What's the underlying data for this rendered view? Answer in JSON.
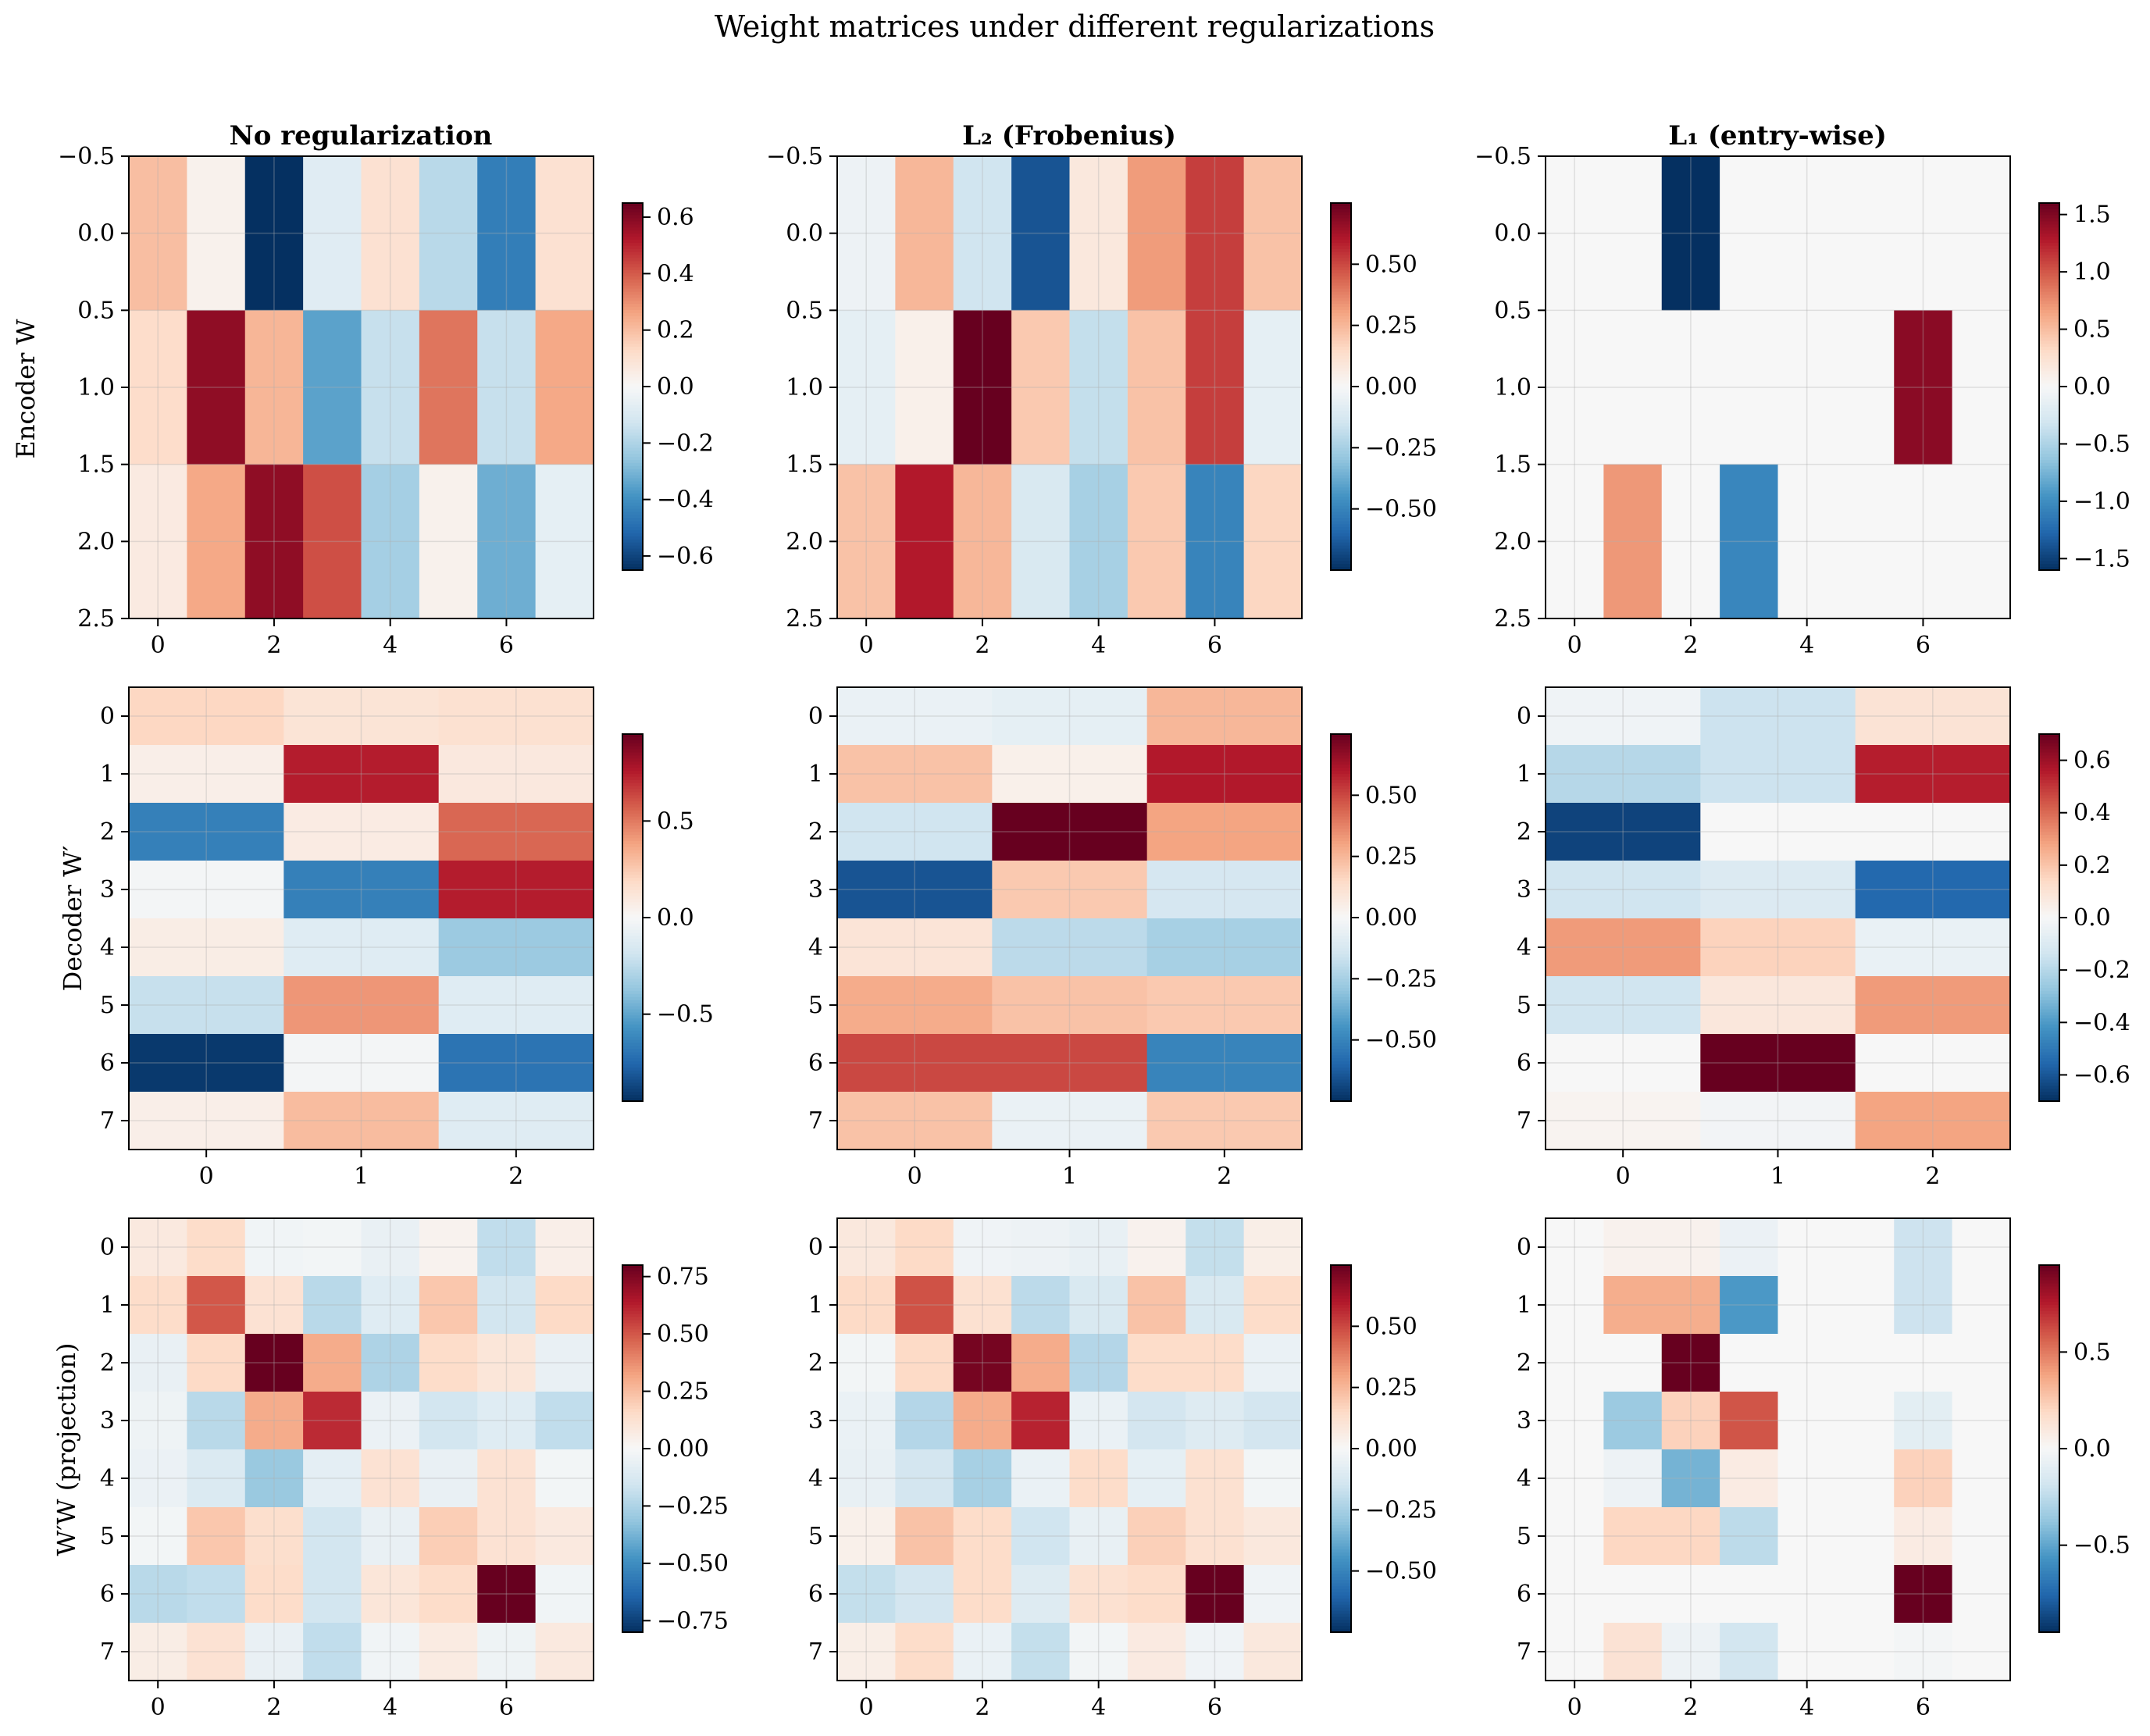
{
  "title": "Weight matrices under different regularizations",
  "columns": [
    "No regularization",
    "L₂ (Frobenius)",
    "L₁ (entry-wise)"
  ],
  "rows": [
    "Encoder W",
    "Decoder W′",
    "W′W (projection)"
  ],
  "colormap": {
    "name": "RdBu_r",
    "stops": [
      "#053061",
      "#2166ac",
      "#4393c3",
      "#92c5de",
      "#d1e5f0",
      "#f7f7f7",
      "#fddbc7",
      "#f4a582",
      "#d6604d",
      "#b2182b",
      "#67001f"
    ]
  },
  "chart_data": [
    {
      "type": "heatmap",
      "panel": "encoder-none",
      "title": "No regularization",
      "ylabel": "Encoder W",
      "xticks": [
        "0",
        "2",
        "4",
        "6"
      ],
      "yticks": [
        "−0.5",
        "0.0",
        "0.5",
        "1.0",
        "1.5",
        "2.0",
        "2.5"
      ],
      "colorbar_ticks": [
        "−0.6",
        "−0.4",
        "−0.2",
        "0.0",
        "0.2",
        "0.4",
        "0.6"
      ],
      "vmin": -0.65,
      "vmax": 0.65,
      "values": [
        [
          0.2,
          0.03,
          -0.65,
          -0.08,
          0.1,
          -0.18,
          -0.45,
          0.1
        ],
        [
          0.12,
          0.58,
          0.22,
          -0.35,
          -0.15,
          0.35,
          -0.15,
          0.25
        ],
        [
          0.06,
          0.25,
          0.58,
          0.42,
          -0.22,
          0.03,
          -0.32,
          -0.06
        ]
      ]
    },
    {
      "type": "heatmap",
      "panel": "encoder-l2",
      "title": "L₂ (Frobenius)",
      "xticks": [
        "0",
        "2",
        "4",
        "6"
      ],
      "yticks": [
        "−0.5",
        "0.0",
        "0.5",
        "1.0",
        "1.5",
        "2.0",
        "2.5"
      ],
      "colorbar_ticks": [
        "−0.50",
        "−0.25",
        "0.00",
        "0.25",
        "0.50"
      ],
      "vmin": -0.75,
      "vmax": 0.75,
      "values": [
        [
          -0.04,
          0.25,
          -0.15,
          -0.65,
          0.08,
          0.32,
          0.52,
          0.22
        ],
        [
          -0.07,
          0.04,
          0.75,
          0.2,
          -0.18,
          0.22,
          0.52,
          -0.07
        ],
        [
          0.22,
          0.6,
          0.25,
          -0.12,
          -0.25,
          0.2,
          -0.5,
          0.16
        ]
      ]
    },
    {
      "type": "heatmap",
      "panel": "encoder-l1",
      "title": "L₁ (entry-wise)",
      "xticks": [
        "0",
        "2",
        "4",
        "6"
      ],
      "yticks": [
        "−0.5",
        "0.0",
        "0.5",
        "1.0",
        "1.5",
        "2.0",
        "2.5"
      ],
      "colorbar_ticks": [
        "−1.5",
        "−1.0",
        "−0.5",
        "0.0",
        "0.5",
        "1.0",
        "1.5"
      ],
      "vmin": -1.6,
      "vmax": 1.6,
      "values": [
        [
          0,
          0,
          -1.6,
          0,
          0,
          0,
          0,
          0
        ],
        [
          0,
          0,
          0,
          0,
          0,
          0,
          1.45,
          0
        ],
        [
          0,
          0.7,
          0,
          -1.05,
          0,
          0,
          0,
          0
        ]
      ]
    },
    {
      "type": "heatmap",
      "panel": "decoder-none",
      "ylabel": "Decoder W′",
      "xticks": [
        "0",
        "1",
        "2"
      ],
      "yticks": [
        "0",
        "1",
        "2",
        "3",
        "4",
        "5",
        "6",
        "7"
      ],
      "colorbar_ticks": [
        "−0.5",
        "0.0",
        "0.5"
      ],
      "vmin": -0.95,
      "vmax": 0.95,
      "values": [
        [
          0.2,
          0.13,
          0.15
        ],
        [
          0.06,
          0.75,
          0.1
        ],
        [
          -0.65,
          0.08,
          0.55
        ],
        [
          -0.02,
          -0.65,
          0.75
        ],
        [
          0.07,
          -0.12,
          -0.35
        ],
        [
          -0.22,
          0.42,
          -0.12
        ],
        [
          -0.92,
          -0.02,
          -0.7
        ],
        [
          0.06,
          0.3,
          -0.12
        ]
      ]
    },
    {
      "type": "heatmap",
      "panel": "decoder-l2",
      "xticks": [
        "0",
        "1",
        "2"
      ],
      "yticks": [
        "0",
        "1",
        "2",
        "3",
        "4",
        "5",
        "6",
        "7"
      ],
      "colorbar_ticks": [
        "−0.50",
        "−0.25",
        "0.00",
        "0.25",
        "0.50"
      ],
      "vmin": -0.75,
      "vmax": 0.75,
      "values": [
        [
          -0.05,
          -0.07,
          0.25
        ],
        [
          0.22,
          0.04,
          0.6
        ],
        [
          -0.15,
          0.75,
          0.3
        ],
        [
          -0.65,
          0.2,
          -0.13
        ],
        [
          0.1,
          -0.2,
          -0.25
        ],
        [
          0.28,
          0.22,
          0.2
        ],
        [
          0.5,
          0.5,
          -0.5
        ],
        [
          0.22,
          -0.05,
          0.2
        ]
      ]
    },
    {
      "type": "heatmap",
      "panel": "decoder-l1",
      "xticks": [
        "0",
        "1",
        "2"
      ],
      "yticks": [
        "0",
        "1",
        "2",
        "3",
        "4",
        "5",
        "6",
        "7"
      ],
      "colorbar_ticks": [
        "−0.6",
        "−0.4",
        "−0.2",
        "0.0",
        "0.2",
        "0.4",
        "0.6"
      ],
      "vmin": -0.7,
      "vmax": 0.7,
      "values": [
        [
          -0.03,
          -0.15,
          0.1
        ],
        [
          -0.2,
          -0.15,
          0.55
        ],
        [
          -0.65,
          0,
          0
        ],
        [
          -0.14,
          -0.1,
          -0.55
        ],
        [
          0.3,
          0.16,
          -0.05
        ],
        [
          -0.14,
          0.08,
          0.3
        ],
        [
          0,
          0.7,
          0
        ],
        [
          0.02,
          -0.02,
          0.28
        ]
      ]
    },
    {
      "type": "heatmap",
      "panel": "projection-none",
      "ylabel": "W′W (projection)",
      "xticks": [
        "0",
        "2",
        "4",
        "6"
      ],
      "yticks": [
        "0",
        "1",
        "2",
        "3",
        "4",
        "5",
        "6",
        "7"
      ],
      "colorbar_ticks": [
        "−0.75",
        "−0.50",
        "−0.25",
        "0.00",
        "0.25",
        "0.50",
        "0.75"
      ],
      "vmin": -0.8,
      "vmax": 0.8,
      "values": [
        [
          0.08,
          0.15,
          -0.03,
          -0.02,
          -0.06,
          0.03,
          -0.2,
          0.05
        ],
        [
          0.15,
          0.5,
          0.12,
          -0.22,
          -0.1,
          0.22,
          -0.15,
          0.16
        ],
        [
          -0.06,
          0.16,
          0.8,
          0.3,
          -0.25,
          0.15,
          0.1,
          -0.06
        ],
        [
          -0.04,
          -0.22,
          0.3,
          0.6,
          -0.05,
          -0.15,
          -0.1,
          -0.2
        ],
        [
          -0.05,
          -0.12,
          -0.3,
          -0.08,
          0.12,
          -0.06,
          0.12,
          -0.02
        ],
        [
          -0.02,
          0.22,
          0.14,
          -0.15,
          -0.06,
          0.2,
          0.12,
          0.08
        ],
        [
          -0.22,
          -0.2,
          0.15,
          -0.15,
          0.1,
          0.15,
          0.8,
          -0.03
        ],
        [
          0.06,
          0.12,
          -0.06,
          -0.2,
          -0.03,
          0.07,
          -0.04,
          0.08
        ]
      ]
    },
    {
      "type": "heatmap",
      "panel": "projection-l2",
      "xticks": [
        "0",
        "2",
        "4",
        "6"
      ],
      "yticks": [
        "0",
        "1",
        "2",
        "3",
        "4",
        "5",
        "6",
        "7"
      ],
      "colorbar_ticks": [
        "−0.50",
        "−0.25",
        "0.00",
        "0.25",
        "0.50"
      ],
      "vmin": -0.75,
      "vmax": 0.75,
      "values": [
        [
          0.08,
          0.15,
          -0.03,
          -0.04,
          -0.06,
          0.03,
          -0.18,
          0.05
        ],
        [
          0.15,
          0.48,
          0.12,
          -0.2,
          -0.12,
          0.22,
          -0.12,
          0.14
        ],
        [
          -0.02,
          0.15,
          0.72,
          0.28,
          -0.22,
          0.14,
          0.14,
          -0.05
        ],
        [
          -0.05,
          -0.22,
          0.28,
          0.58,
          -0.05,
          -0.14,
          -0.1,
          -0.14
        ],
        [
          -0.06,
          -0.14,
          -0.25,
          -0.05,
          0.14,
          -0.07,
          0.12,
          -0.02
        ],
        [
          0.04,
          0.22,
          0.14,
          -0.15,
          -0.06,
          0.18,
          0.12,
          0.08
        ],
        [
          -0.18,
          -0.14,
          0.14,
          -0.1,
          0.12,
          0.14,
          0.75,
          -0.03
        ],
        [
          0.05,
          0.14,
          -0.05,
          -0.18,
          -0.02,
          0.07,
          -0.03,
          0.08
        ]
      ]
    },
    {
      "type": "heatmap",
      "panel": "projection-l1",
      "xticks": [
        "0",
        "2",
        "4",
        "6"
      ],
      "yticks": [
        "0",
        "1",
        "2",
        "3",
        "4",
        "5",
        "6",
        "7"
      ],
      "colorbar_ticks": [
        "−0.5",
        "0.0",
        "0.5"
      ],
      "vmin": -0.95,
      "vmax": 0.95,
      "values": [
        [
          0,
          0.04,
          0.04,
          -0.06,
          0,
          0,
          -0.2,
          0
        ],
        [
          0,
          0.35,
          0.35,
          -0.55,
          0,
          0,
          -0.2,
          0
        ],
        [
          0,
          0,
          0.95,
          0,
          0,
          0,
          0,
          0
        ],
        [
          0,
          -0.35,
          0.22,
          0.6,
          0,
          0,
          -0.1,
          0
        ],
        [
          0,
          -0.05,
          -0.45,
          0.08,
          0,
          0,
          0.22,
          0
        ],
        [
          0,
          0.2,
          0.2,
          -0.25,
          0,
          0,
          0.08,
          0
        ],
        [
          0,
          0,
          0,
          0,
          0,
          0,
          0.95,
          0
        ],
        [
          0,
          0.14,
          -0.05,
          -0.18,
          0,
          0,
          -0.02,
          0
        ]
      ]
    }
  ]
}
